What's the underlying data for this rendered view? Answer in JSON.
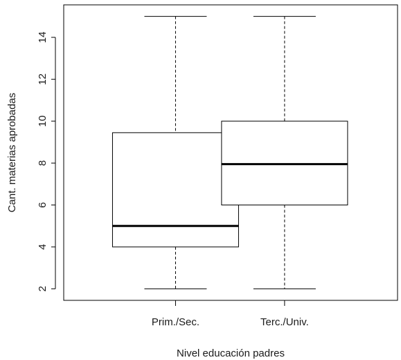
{
  "chart_data": {
    "type": "boxplot",
    "title": "",
    "xlabel": "Nivel educación padres",
    "ylabel": "Cant. materias aprobadas",
    "categories": [
      "Prim./Sec.",
      "Terc./Univ."
    ],
    "boxes": [
      {
        "category": "Prim./Sec.",
        "whisker_low": 2,
        "q1": 4,
        "median": 5,
        "q3": 9.45,
        "whisker_high": 15
      },
      {
        "category": "Terc./Univ.",
        "whisker_low": 2,
        "q1": 6,
        "median": 7.95,
        "q3": 10,
        "whisker_high": 15
      }
    ],
    "ylim": [
      1.45,
      15.55
    ],
    "yticks": [
      2,
      4,
      6,
      8,
      10,
      12,
      14
    ],
    "grid": false,
    "legend": "none"
  }
}
